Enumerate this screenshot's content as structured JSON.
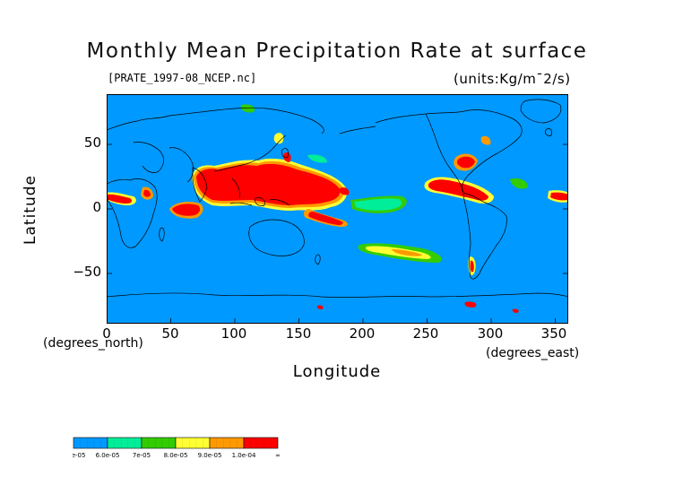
{
  "map": {
    "title": "Monthly Mean Precipitation Rate at surface",
    "file_label": "[PRATE_1997-08_NCEP.nc]",
    "units": "(units:Kg/m¯2/s)",
    "y_axis": {
      "label": "Latitude",
      "note": "(degrees_north)",
      "ticks": [
        "50",
        "0",
        "−50"
      ],
      "tick_values": [
        50,
        0,
        -50
      ],
      "range": [
        -90,
        90
      ]
    },
    "x_axis": {
      "label": "Longitude",
      "note": "(degrees_east)",
      "ticks": [
        "0",
        "50",
        "100",
        "150",
        "200",
        "250",
        "300",
        "350"
      ],
      "tick_values": [
        0,
        50,
        100,
        150,
        200,
        250,
        300,
        350
      ],
      "range": [
        0,
        360
      ]
    },
    "ocean_color": "#0099ff",
    "coastline_color": "#000000",
    "legend": {
      "labels": [
        "5.0e-05",
        "6.0e-05",
        "7e-05",
        "8.0e-05",
        "9.0e-05",
        "1.0e-04",
        "∞"
      ],
      "colors": [
        "#0099ff",
        "#00ee99",
        "#33cc00",
        "#ffff33",
        "#ff9900",
        "#ff0000"
      ]
    }
  }
}
